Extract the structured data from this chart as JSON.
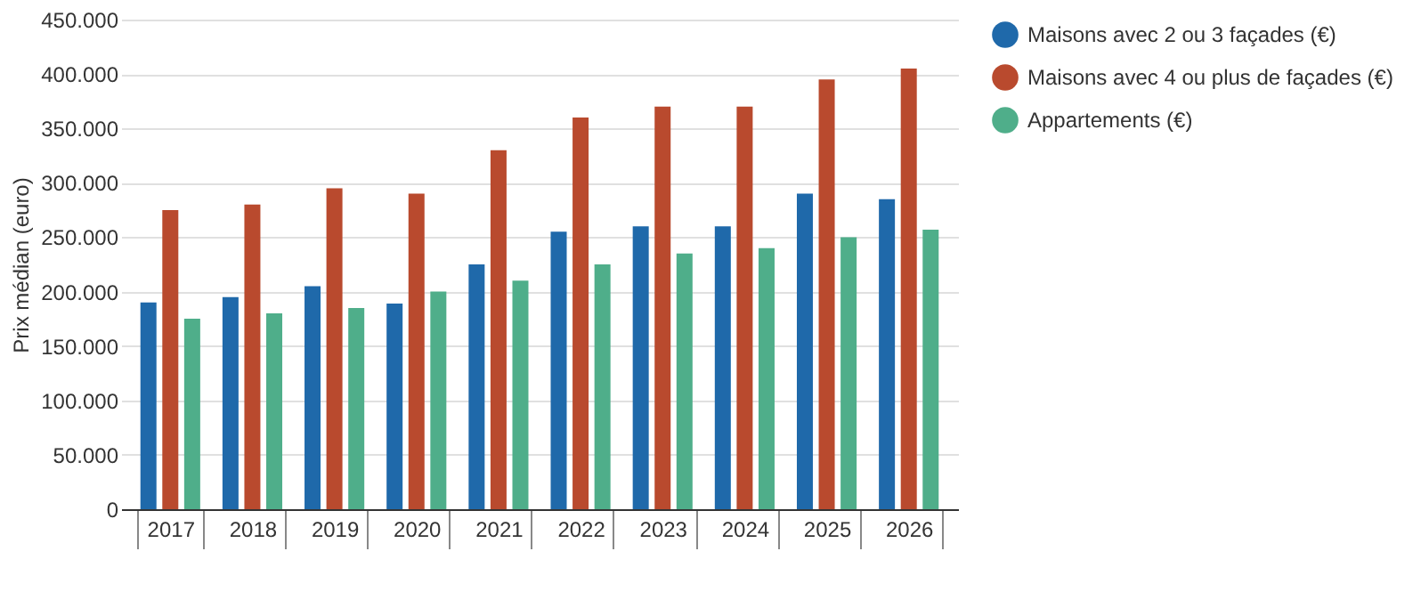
{
  "chart_data": {
    "type": "bar",
    "ylabel": "Prix médian (euro)",
    "categories": [
      "2017",
      "2018",
      "2019",
      "2020",
      "2021",
      "2022",
      "2023",
      "2024",
      "2025",
      "2026"
    ],
    "series": [
      {
        "name": "Maisons avec 2 ou 3 façades (€)",
        "color": "#1f69aa",
        "values": [
          190000,
          195000,
          205000,
          189000,
          225000,
          255000,
          260000,
          260000,
          290000,
          285000
        ]
      },
      {
        "name": "Maisons avec 4 ou plus de façades (€)",
        "color": "#b94a2e",
        "values": [
          275000,
          280000,
          295000,
          290000,
          330000,
          360000,
          370000,
          370000,
          395000,
          405000
        ]
      },
      {
        "name": "Appartements (€)",
        "color": "#4fae8a",
        "values": [
          175000,
          180000,
          185000,
          200000,
          210000,
          225000,
          235000,
          240000,
          250000,
          257000
        ]
      }
    ],
    "ylim": [
      0,
      450000
    ],
    "yticks": [
      0,
      {
        "value": 50000,
        "label": "50.000"
      },
      {
        "value": 100000,
        "label": "100.000"
      },
      {
        "value": 150000,
        "label": "150.000"
      },
      {
        "value": 200000,
        "label": "200.000"
      },
      {
        "value": 250000,
        "label": "250.000"
      },
      {
        "value": 300000,
        "label": "300.000"
      },
      {
        "value": 350000,
        "label": "350.000"
      },
      {
        "value": 400000,
        "label": "400.000"
      },
      {
        "value": 450000,
        "label": "450.000"
      }
    ],
    "grid": "y",
    "legend": "top right"
  }
}
